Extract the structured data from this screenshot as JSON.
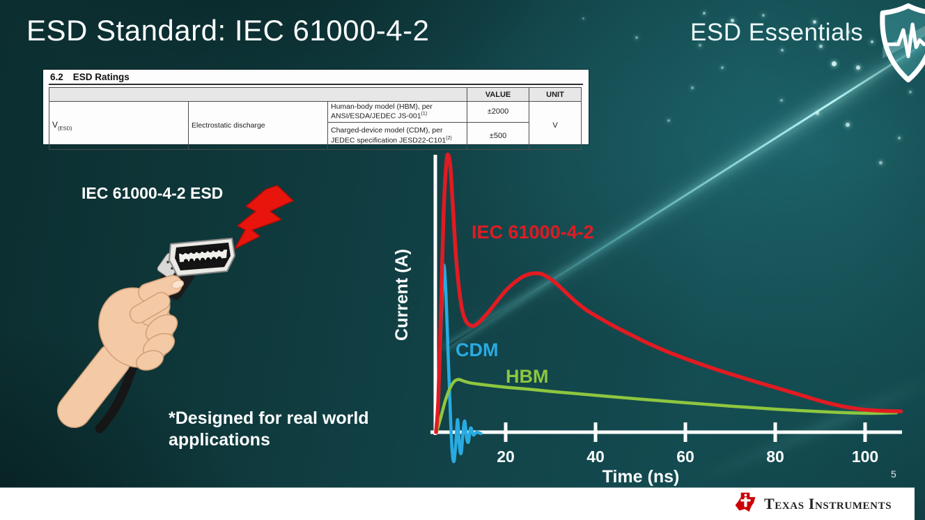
{
  "slide": {
    "title": "ESD Standard: IEC 61000-4-2",
    "series_badge": "ESD Essentials",
    "footnote": "*Designed for real world applications",
    "page_number": "5"
  },
  "ratings_table": {
    "section_number": "6.2",
    "section_title": "ESD Ratings",
    "col_value": "VALUE",
    "col_unit": "UNIT",
    "symbol": "V",
    "symbol_sub": "(ESD)",
    "parameter": "Electrostatic discharge",
    "rows": [
      {
        "description": "Human-body model (HBM), per ANSI/ESDA/JEDEC JS-001",
        "superscript": "(1)",
        "value": "±2000"
      },
      {
        "description": "Charged-device model (CDM), per JEDEC specification JESD22-C101",
        "superscript": "(2)",
        "value": "±500"
      }
    ],
    "unit": "V"
  },
  "illustration": {
    "label": "IEC 61000-4-2 ESD",
    "subject": "hand holding HDMI cable struck by red ESD lightning bolt"
  },
  "chart_data": {
    "type": "line",
    "title": "",
    "xlabel": "Time (ns)",
    "ylabel": "Current (A)",
    "x_ticks": [
      20,
      40,
      60,
      80,
      100
    ],
    "x_range": [
      0,
      112
    ],
    "y_axis_labeled": false,
    "y_range_normalized": [
      -0.12,
      1.05
    ],
    "grid": false,
    "axis_color": "#ffffff",
    "series": [
      {
        "name": "CDM",
        "color": "#29abe2",
        "stroke_width": 4.5,
        "label_pos": [
          99,
          316
        ],
        "points": [
          [
            4.6,
            0
          ],
          [
            5.0,
            0.1
          ],
          [
            5.5,
            0.34
          ],
          [
            6.0,
            0.55
          ],
          [
            6.3,
            0.6
          ],
          [
            6.7,
            0.5
          ],
          [
            7.2,
            0.28
          ],
          [
            7.7,
            0.06
          ],
          [
            8.1,
            -0.07
          ],
          [
            8.5,
            -0.105
          ],
          [
            8.9,
            -0.04
          ],
          [
            9.3,
            0.045
          ],
          [
            9.7,
            -0.05
          ],
          [
            10.1,
            -0.075
          ],
          [
            10.5,
            0.0
          ],
          [
            10.9,
            0.04
          ],
          [
            11.3,
            -0.02
          ],
          [
            11.7,
            -0.035
          ],
          [
            12.2,
            0.015
          ],
          [
            12.8,
            -0.01
          ],
          [
            13.5,
            0.0
          ],
          [
            14.5,
            -0.005
          ]
        ]
      },
      {
        "name": "HBM",
        "color": "#8ec63f",
        "stroke_width": 4.5,
        "label_pos": [
          171,
          354
        ],
        "points": [
          [
            4.6,
            0
          ],
          [
            5.5,
            0.05
          ],
          [
            6.5,
            0.11
          ],
          [
            7.5,
            0.155
          ],
          [
            8.5,
            0.182
          ],
          [
            9.5,
            0.19
          ],
          [
            10.5,
            0.185
          ],
          [
            12,
            0.178
          ],
          [
            15,
            0.171
          ],
          [
            20,
            0.162
          ],
          [
            25,
            0.155
          ],
          [
            30,
            0.147
          ],
          [
            35,
            0.14
          ],
          [
            40,
            0.133
          ],
          [
            50,
            0.119
          ],
          [
            60,
            0.106
          ],
          [
            70,
            0.094
          ],
          [
            80,
            0.083
          ],
          [
            90,
            0.074
          ],
          [
            96,
            0.07
          ],
          [
            102,
            0.068
          ],
          [
            107,
            0.07
          ]
        ]
      },
      {
        "name": "IEC 61000-4-2",
        "color": "#e11b22",
        "stroke_width": 5.5,
        "label_pos": [
          122,
          147
        ],
        "points": [
          [
            4.5,
            0
          ],
          [
            5.0,
            0.12
          ],
          [
            5.6,
            0.45
          ],
          [
            6.2,
            0.8
          ],
          [
            6.8,
            0.97
          ],
          [
            7.2,
            1.0
          ],
          [
            7.7,
            0.955
          ],
          [
            8.3,
            0.8
          ],
          [
            9.0,
            0.62
          ],
          [
            10,
            0.47
          ],
          [
            11,
            0.405
          ],
          [
            12.5,
            0.383
          ],
          [
            14,
            0.395
          ],
          [
            16,
            0.43
          ],
          [
            18,
            0.47
          ],
          [
            20,
            0.51
          ],
          [
            22,
            0.54
          ],
          [
            24,
            0.562
          ],
          [
            26,
            0.572
          ],
          [
            28,
            0.57
          ],
          [
            30,
            0.552
          ],
          [
            32,
            0.525
          ],
          [
            34,
            0.494
          ],
          [
            36,
            0.465
          ],
          [
            38,
            0.44
          ],
          [
            40,
            0.42
          ],
          [
            44,
            0.383
          ],
          [
            48,
            0.35
          ],
          [
            52,
            0.318
          ],
          [
            56,
            0.29
          ],
          [
            60,
            0.265
          ],
          [
            64,
            0.242
          ],
          [
            68,
            0.22
          ],
          [
            72,
            0.2
          ],
          [
            76,
            0.18
          ],
          [
            80,
            0.161
          ],
          [
            84,
            0.142
          ],
          [
            88,
            0.122
          ],
          [
            92,
            0.104
          ],
          [
            96,
            0.09
          ],
          [
            100,
            0.081
          ],
          [
            104,
            0.077
          ],
          [
            108,
            0.075
          ]
        ]
      }
    ]
  },
  "footer": {
    "brand": "Texas Instruments",
    "brand_red": "#cc0000"
  },
  "theme": {
    "background_teal": "#124449",
    "accent_cyan": "#7fe6e6",
    "text_white": "#ffffff"
  }
}
